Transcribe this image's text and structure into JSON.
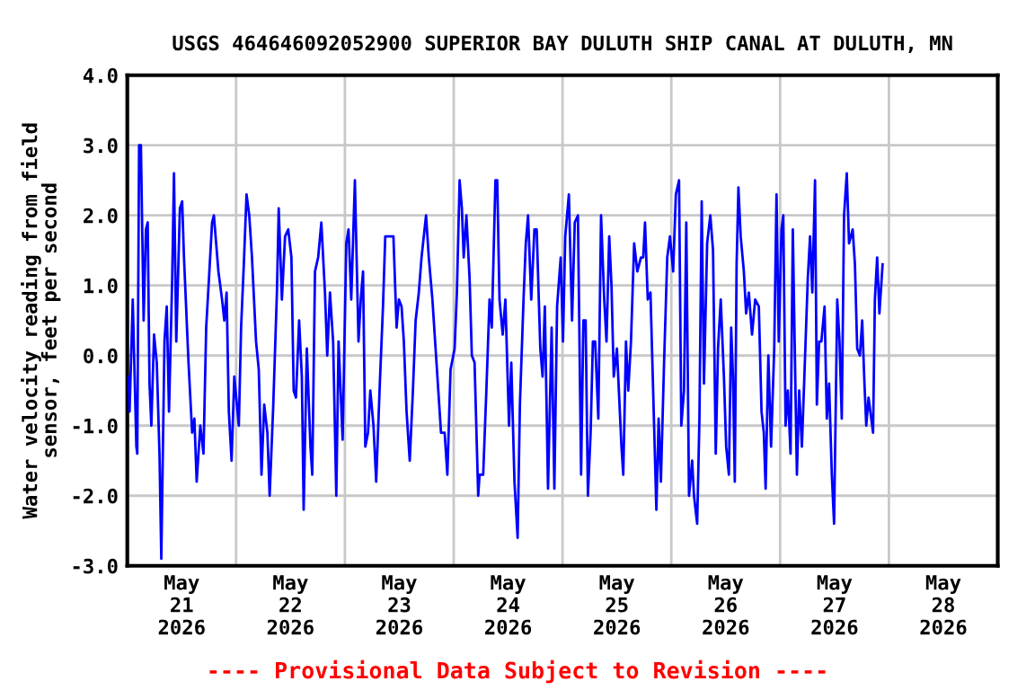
{
  "chart_data": {
    "type": "line",
    "title": "USGS 464646092052900 SUPERIOR BAY DULUTH SHIP CANAL AT DULUTH, MN",
    "ylabel": "Water velocity reading from field\nsensor, feet per second",
    "annotations": [
      "---- Provisional Data Subject to Revision ----"
    ],
    "xlim": [
      "2026-05-21T00:00",
      "2026-05-29T00:00"
    ],
    "xticks": [
      {
        "value": "2026-05-21T12:00",
        "label": "May\n21\n2026"
      },
      {
        "value": "2026-05-22T00:00",
        "label": null
      },
      {
        "value": "2026-05-22T12:00",
        "label": "May\n22\n2026"
      },
      {
        "value": "2026-05-23T00:00",
        "label": null
      },
      {
        "value": "2026-05-23T12:00",
        "label": "May\n23\n2026"
      },
      {
        "value": "2026-05-24T00:00",
        "label": null
      },
      {
        "value": "2026-05-24T12:00",
        "label": "May\n24\n2026"
      },
      {
        "value": "2026-05-25T00:00",
        "label": null
      },
      {
        "value": "2026-05-25T12:00",
        "label": "May\n25\n2026"
      },
      {
        "value": "2026-05-26T00:00",
        "label": null
      },
      {
        "value": "2026-05-26T12:00",
        "label": "May\n26\n2026"
      },
      {
        "value": "2026-05-27T00:00",
        "label": null
      },
      {
        "value": "2026-05-27T12:00",
        "label": "May\n27\n2026"
      },
      {
        "value": "2026-05-28T00:00",
        "label": null
      },
      {
        "value": "2026-05-28T12:00",
        "label": "May\n28\n2026"
      }
    ],
    "ylim": [
      -3,
      4
    ],
    "yticks": [
      {
        "value": -3,
        "label": "-3.0"
      },
      {
        "value": -2,
        "label": "-2.0"
      },
      {
        "value": -1,
        "label": "-1.0"
      },
      {
        "value": 0,
        "label": "0.0"
      },
      {
        "value": 1,
        "label": "1.0"
      },
      {
        "value": 2,
        "label": "2.0"
      },
      {
        "value": 3,
        "label": "3.0"
      },
      {
        "value": 4,
        "label": "4.0"
      }
    ],
    "grid": true,
    "line_style": "solid",
    "series": [
      {
        "color": "#0000ff",
        "x": [
          "2026-05-21T00:18",
          "2026-05-21T00:30",
          "2026-05-21T01:12",
          "2026-05-21T02:00",
          "2026-05-21T02:12",
          "2026-05-21T02:36",
          "2026-05-21T03:00",
          "2026-05-21T03:36",
          "2026-05-21T04:06",
          "2026-05-21T04:30",
          "2026-05-21T04:54",
          "2026-05-21T05:18",
          "2026-05-21T05:54",
          "2026-05-21T06:30",
          "2026-05-21T07:06",
          "2026-05-21T07:30",
          "2026-05-21T08:12",
          "2026-05-21T08:42",
          "2026-05-21T09:12",
          "2026-05-21T09:54",
          "2026-05-21T10:18",
          "2026-05-21T10:48",
          "2026-05-21T11:36",
          "2026-05-21T12:06",
          "2026-05-21T12:30",
          "2026-05-21T13:30",
          "2026-05-21T14:18",
          "2026-05-21T14:48",
          "2026-05-21T15:18",
          "2026-05-21T16:06",
          "2026-05-21T16:48",
          "2026-05-21T17:24",
          "2026-05-21T18:06",
          "2026-05-21T18:42",
          "2026-05-21T19:06",
          "2026-05-21T20:06",
          "2026-05-21T20:54",
          "2026-05-21T21:24",
          "2026-05-21T21:54",
          "2026-05-21T22:24",
          "2026-05-21T23:00",
          "2026-05-21T23:36",
          "2026-05-22T00:36",
          "2026-05-22T01:06",
          "2026-05-22T01:42",
          "2026-05-22T02:18",
          "2026-05-22T02:54",
          "2026-05-22T03:30",
          "2026-05-22T04:24",
          "2026-05-22T05:00",
          "2026-05-22T05:36",
          "2026-05-22T06:12",
          "2026-05-22T06:54",
          "2026-05-22T07:24",
          "2026-05-22T08:12",
          "2026-05-22T09:00",
          "2026-05-22T09:24",
          "2026-05-22T10:06",
          "2026-05-22T10:48",
          "2026-05-22T11:30",
          "2026-05-22T12:12",
          "2026-05-22T12:42",
          "2026-05-22T13:12",
          "2026-05-22T13:54",
          "2026-05-22T14:30",
          "2026-05-22T14:54",
          "2026-05-22T15:36",
          "2026-05-22T16:24",
          "2026-05-22T16:48",
          "2026-05-22T17:24",
          "2026-05-22T18:06",
          "2026-05-22T18:48",
          "2026-05-22T19:36",
          "2026-05-22T20:06",
          "2026-05-22T20:42",
          "2026-05-22T21:24",
          "2026-05-22T22:06",
          "2026-05-22T22:36",
          "2026-05-22T23:30",
          "2026-05-23T00:18",
          "2026-05-23T00:48",
          "2026-05-23T01:24",
          "2026-05-23T02:12",
          "2026-05-23T03:00",
          "2026-05-23T03:30",
          "2026-05-23T04:00",
          "2026-05-23T04:30",
          "2026-05-23T05:06",
          "2026-05-23T05:36",
          "2026-05-23T06:18",
          "2026-05-23T06:54",
          "2026-05-23T07:42",
          "2026-05-23T08:24",
          "2026-05-23T08:54",
          "2026-05-23T09:36",
          "2026-05-23T10:12",
          "2026-05-23T10:42",
          "2026-05-23T11:24",
          "2026-05-23T11:54",
          "2026-05-23T12:30",
          "2026-05-23T13:00",
          "2026-05-23T13:36",
          "2026-05-23T14:18",
          "2026-05-23T15:00",
          "2026-05-23T15:36",
          "2026-05-23T16:18",
          "2026-05-23T16:54",
          "2026-05-23T17:54",
          "2026-05-23T18:30",
          "2026-05-23T19:18",
          "2026-05-23T20:06",
          "2026-05-23T20:36",
          "2026-05-23T21:12",
          "2026-05-23T22:00",
          "2026-05-23T22:36",
          "2026-05-23T23:18",
          "2026-05-24T00:12",
          "2026-05-24T00:42",
          "2026-05-24T01:18",
          "2026-05-24T01:48",
          "2026-05-24T02:12",
          "2026-05-24T02:48",
          "2026-05-24T03:30",
          "2026-05-24T04:00",
          "2026-05-24T04:36",
          "2026-05-24T05:24",
          "2026-05-24T05:42",
          "2026-05-24T06:30",
          "2026-05-24T07:12",
          "2026-05-24T07:54",
          "2026-05-24T08:24",
          "2026-05-24T09:12",
          "2026-05-24T09:36",
          "2026-05-24T10:06",
          "2026-05-24T10:48",
          "2026-05-24T11:24",
          "2026-05-24T12:12",
          "2026-05-24T12:42",
          "2026-05-24T13:24",
          "2026-05-24T14:06",
          "2026-05-24T14:36",
          "2026-05-24T15:24",
          "2026-05-24T15:54",
          "2026-05-24T16:24",
          "2026-05-24T17:06",
          "2026-05-24T17:48",
          "2026-05-24T18:18",
          "2026-05-24T19:06",
          "2026-05-24T19:36",
          "2026-05-24T20:06",
          "2026-05-24T20:48",
          "2026-05-24T21:36",
          "2026-05-24T22:12",
          "2026-05-24T22:48",
          "2026-05-24T23:36",
          "2026-05-25T00:06",
          "2026-05-25T00:36",
          "2026-05-25T01:24",
          "2026-05-25T02:06",
          "2026-05-25T02:42",
          "2026-05-25T03:24",
          "2026-05-25T04:06",
          "2026-05-25T04:36",
          "2026-05-25T05:06",
          "2026-05-25T05:36",
          "2026-05-25T06:12",
          "2026-05-25T06:42",
          "2026-05-25T07:12",
          "2026-05-25T07:54",
          "2026-05-25T08:30",
          "2026-05-25T09:12",
          "2026-05-25T09:42",
          "2026-05-25T10:18",
          "2026-05-25T10:48",
          "2026-05-25T11:18",
          "2026-05-25T12:00",
          "2026-05-25T12:30",
          "2026-05-25T13:00",
          "2026-05-25T13:24",
          "2026-05-25T14:00",
          "2026-05-25T14:30",
          "2026-05-25T15:06",
          "2026-05-25T15:48",
          "2026-05-25T16:30",
          "2026-05-25T17:18",
          "2026-05-25T17:48",
          "2026-05-25T18:12",
          "2026-05-25T18:48",
          "2026-05-25T19:24",
          "2026-05-25T20:12",
          "2026-05-25T20:42",
          "2026-05-25T21:12",
          "2026-05-25T21:42",
          "2026-05-25T22:24",
          "2026-05-25T23:06",
          "2026-05-25T23:42",
          "2026-05-26T00:24",
          "2026-05-26T01:00",
          "2026-05-26T01:42",
          "2026-05-26T02:12",
          "2026-05-26T02:48",
          "2026-05-26T03:18",
          "2026-05-26T03:54",
          "2026-05-26T04:36",
          "2026-05-26T05:00",
          "2026-05-26T05:42",
          "2026-05-26T06:12",
          "2026-05-26T06:42",
          "2026-05-26T07:12",
          "2026-05-26T07:54",
          "2026-05-26T08:36",
          "2026-05-26T09:12",
          "2026-05-26T09:48",
          "2026-05-26T10:18",
          "2026-05-26T10:54",
          "2026-05-26T11:36",
          "2026-05-26T12:06",
          "2026-05-26T12:42",
          "2026-05-26T13:12",
          "2026-05-26T13:36",
          "2026-05-26T14:00",
          "2026-05-26T14:24",
          "2026-05-26T14:48",
          "2026-05-26T15:18",
          "2026-05-26T16:00",
          "2026-05-26T16:30",
          "2026-05-26T17:06",
          "2026-05-26T17:48",
          "2026-05-26T18:30",
          "2026-05-26T19:18",
          "2026-05-26T19:54",
          "2026-05-26T20:24",
          "2026-05-26T20:48",
          "2026-05-26T21:24",
          "2026-05-26T22:00",
          "2026-05-26T22:42",
          "2026-05-26T23:12",
          "2026-05-26T23:42",
          "2026-05-27T00:18",
          "2026-05-27T00:42",
          "2026-05-27T01:12",
          "2026-05-27T01:42",
          "2026-05-27T02:18",
          "2026-05-27T02:48",
          "2026-05-27T03:12",
          "2026-05-27T03:42",
          "2026-05-27T04:12",
          "2026-05-27T04:48",
          "2026-05-27T05:24",
          "2026-05-27T06:06",
          "2026-05-27T06:36",
          "2026-05-27T07:06",
          "2026-05-27T07:42",
          "2026-05-27T08:06",
          "2026-05-27T08:36",
          "2026-05-27T09:06",
          "2026-05-27T09:48",
          "2026-05-27T10:18",
          "2026-05-27T10:48",
          "2026-05-27T11:24",
          "2026-05-27T11:54",
          "2026-05-27T12:36",
          "2026-05-27T13:06",
          "2026-05-27T13:36",
          "2026-05-27T14:06",
          "2026-05-27T14:42",
          "2026-05-27T15:12",
          "2026-05-27T16:00",
          "2026-05-27T16:30",
          "2026-05-27T17:00",
          "2026-05-27T17:36",
          "2026-05-27T18:06",
          "2026-05-27T18:36",
          "2026-05-27T19:00",
          "2026-05-27T19:30",
          "2026-05-27T19:54",
          "2026-05-27T20:30",
          "2026-05-27T20:54",
          "2026-05-27T21:24",
          "2026-05-27T21:54",
          "2026-05-27T22:36"
        ],
        "values": [
          -0.3,
          -0.8,
          0.8,
          -1.3,
          -1.4,
          3.0,
          3.0,
          0.5,
          1.8,
          1.9,
          -0.4,
          -1.0,
          0.3,
          -0.1,
          -1.4,
          -2.9,
          0.2,
          0.7,
          -0.8,
          1.1,
          2.6,
          0.2,
          2.1,
          2.2,
          1.4,
          -0.1,
          -1.1,
          -0.9,
          -1.8,
          -1.0,
          -1.4,
          0.4,
          1.2,
          1.9,
          2.0,
          1.2,
          0.8,
          0.5,
          0.9,
          -0.8,
          -1.5,
          -0.3,
          -1.0,
          0.4,
          1.3,
          2.3,
          2.0,
          1.4,
          0.2,
          -0.2,
          -1.7,
          -0.7,
          -1.1,
          -2.0,
          -0.7,
          0.9,
          2.1,
          0.8,
          1.7,
          1.8,
          1.4,
          -0.5,
          -0.6,
          0.5,
          -0.3,
          -2.2,
          0.1,
          -1.3,
          -1.7,
          1.2,
          1.4,
          1.9,
          0.9,
          0.0,
          0.9,
          0.2,
          -2.0,
          0.2,
          -1.2,
          1.6,
          1.8,
          0.8,
          2.5,
          0.2,
          0.8,
          1.2,
          -1.3,
          -1.1,
          -0.5,
          -1.0,
          -1.8,
          -0.4,
          0.7,
          1.7,
          1.7,
          1.7,
          1.7,
          0.4,
          0.8,
          0.7,
          0.2,
          -0.8,
          -1.5,
          -0.5,
          0.5,
          0.9,
          1.4,
          2.0,
          1.4,
          0.8,
          0.0,
          -0.5,
          -1.1,
          -1.1,
          -1.7,
          -0.2,
          0.1,
          0.9,
          2.5,
          2.1,
          1.4,
          2.0,
          1.1,
          0.0,
          -0.1,
          -2.0,
          -1.7,
          -1.7,
          -0.5,
          0.8,
          0.4,
          2.5,
          2.5,
          0.8,
          0.3,
          0.8,
          -1.0,
          -0.1,
          -1.8,
          -2.6,
          -0.7,
          0.8,
          1.6,
          2.0,
          0.8,
          1.8,
          1.8,
          0.1,
          -0.3,
          0.7,
          -1.9,
          0.4,
          -1.9,
          0.7,
          1.4,
          0.2,
          1.7,
          2.3,
          0.5,
          1.9,
          2.0,
          -1.7,
          0.5,
          0.5,
          -2.0,
          -1.1,
          0.2,
          0.2,
          -0.9,
          2.0,
          0.8,
          0.2,
          1.7,
          1.0,
          -0.3,
          0.1,
          -0.6,
          -1.3,
          -1.7,
          0.2,
          -0.5,
          0.2,
          1.6,
          1.2,
          1.4,
          1.4,
          1.9,
          0.8,
          0.9,
          -1.0,
          -2.2,
          -0.9,
          -1.8,
          -0.1,
          1.4,
          1.7,
          1.2,
          2.3,
          2.5,
          -1.0,
          -0.5,
          1.9,
          -2.0,
          -1.5,
          -2.0,
          -2.4,
          -0.9,
          2.2,
          -0.4,
          1.6,
          2.0,
          1.5,
          -1.4,
          0.1,
          0.8,
          -0.3,
          -1.3,
          -1.7,
          0.4,
          -0.3,
          -1.8,
          1.3,
          2.4,
          1.7,
          1.2,
          0.6,
          0.9,
          0.3,
          0.8,
          0.7,
          -0.8,
          -1.1,
          -1.9,
          0.0,
          -1.3,
          0.1,
          2.3,
          0.2,
          1.8,
          2.0,
          -1.0,
          -0.5,
          -1.4,
          1.8,
          0.2,
          -1.7,
          -0.5,
          -1.3,
          -0.2,
          1.1,
          1.7,
          0.9,
          2.5,
          -0.7,
          0.2,
          0.2,
          0.7,
          -0.9,
          -0.4,
          -1.7,
          -2.4,
          0.8,
          0.2,
          -0.9,
          2.0,
          2.6,
          1.6,
          1.8,
          1.3,
          0.1,
          0.0,
          0.5,
          -0.4,
          -1.0,
          -0.6,
          -0.8,
          -1.1,
          0.8,
          1.4,
          0.6,
          1.3
        ]
      }
    ]
  }
}
